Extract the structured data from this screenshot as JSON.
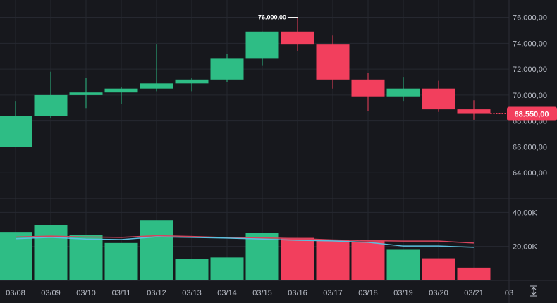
{
  "chart_data": {
    "type": "candlestick",
    "x": [
      "03/08",
      "03/09",
      "03/10",
      "03/11",
      "03/12",
      "03/13",
      "03/14",
      "03/15",
      "03/16",
      "03/17",
      "03/18",
      "03/19",
      "03/20",
      "03/21"
    ],
    "x_ticks": [
      "03/08",
      "03/09",
      "03/10",
      "03/11",
      "03/12",
      "03/13",
      "03/14",
      "03/15",
      "03/16",
      "03/17",
      "03/18",
      "03/19",
      "03/20",
      "03/21",
      "03"
    ],
    "ohlc": [
      {
        "open": 66000,
        "high": 69500,
        "low": 66000,
        "close": 68400
      },
      {
        "open": 68400,
        "high": 71800,
        "low": 68200,
        "close": 70000
      },
      {
        "open": 70000,
        "high": 71300,
        "low": 69000,
        "close": 70200
      },
      {
        "open": 70200,
        "high": 70600,
        "low": 69300,
        "close": 70500
      },
      {
        "open": 70500,
        "high": 73900,
        "low": 70300,
        "close": 70900
      },
      {
        "open": 70900,
        "high": 71300,
        "low": 70300,
        "close": 71200
      },
      {
        "open": 71200,
        "high": 73200,
        "low": 71000,
        "close": 72800
      },
      {
        "open": 72800,
        "high": 74900,
        "low": 72300,
        "close": 74900
      },
      {
        "open": 74900,
        "high": 76000,
        "low": 73400,
        "close": 73900
      },
      {
        "open": 73900,
        "high": 74600,
        "low": 70500,
        "close": 71200
      },
      {
        "open": 71200,
        "high": 71700,
        "low": 68800,
        "close": 69900
      },
      {
        "open": 69900,
        "high": 71400,
        "low": 69500,
        "close": 70500
      },
      {
        "open": 70500,
        "high": 71100,
        "low": 68700,
        "close": 68900
      },
      {
        "open": 68900,
        "high": 69600,
        "low": 68100,
        "close": 68550
      }
    ],
    "price_axis": {
      "ticks": [
        64000,
        66000,
        68000,
        70000,
        72000,
        74000,
        76000
      ],
      "tick_labels": [
        "64.000,00",
        "66.000,00",
        "68.000,00",
        "70.000,00",
        "72.000,00",
        "74.000,00",
        "76.000,00"
      ],
      "ylim": [
        62000,
        76900
      ]
    },
    "high_marker": {
      "value": 76000,
      "label": "76.000,00",
      "index": 8
    },
    "last_price": {
      "value": 68550,
      "label": "68.550,00",
      "color": "#f23f5d"
    },
    "volume": {
      "values": [
        28500,
        32500,
        26500,
        22000,
        35500,
        12500,
        13500,
        28000,
        25000,
        23500,
        23000,
        18000,
        13000,
        7500
      ],
      "ticks": [
        20000,
        40000
      ],
      "tick_labels": [
        "20,00K",
        "40,00K"
      ],
      "ylim": [
        0,
        48000
      ],
      "ma_red": [
        25500,
        26000,
        25500,
        25300,
        26300,
        25800,
        25200,
        25000,
        24600,
        23800,
        23400,
        23100,
        23100,
        22000
      ],
      "ma_blue": [
        24500,
        25300,
        24300,
        24000,
        25600,
        25300,
        24900,
        24300,
        23600,
        23200,
        22400,
        20200,
        20200,
        19500
      ]
    },
    "colors": {
      "up": "#2ebd85",
      "down": "#f23f5d",
      "ma_red": "#d6455e",
      "ma_blue": "#5bc0de",
      "grid": "#262830",
      "background": "#17181d"
    },
    "grid": true
  }
}
